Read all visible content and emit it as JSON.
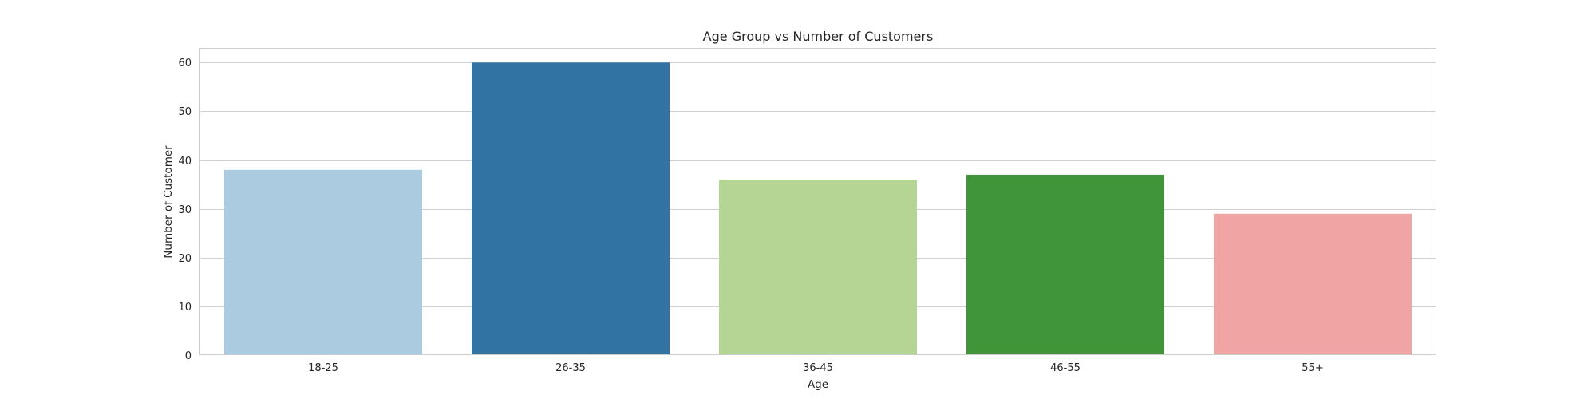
{
  "chart_data": {
    "type": "bar",
    "title": "Age Group vs Number of Customers",
    "xlabel": "Age",
    "ylabel": "Number of Customer",
    "categories": [
      "18-25",
      "26-35",
      "36-45",
      "46-55",
      "55+"
    ],
    "values": [
      38,
      60,
      36,
      37,
      29
    ],
    "colors": [
      "#abcbe0",
      "#3174a3",
      "#b4d594",
      "#409538",
      "#f0a4a3"
    ],
    "ylim": [
      0,
      63
    ],
    "yticks": [
      0,
      10,
      20,
      30,
      40,
      50,
      60
    ],
    "grid": "horizontal",
    "grid_color": "#d0d0d0",
    "frame_color": "#cccccc",
    "legend": "none"
  }
}
